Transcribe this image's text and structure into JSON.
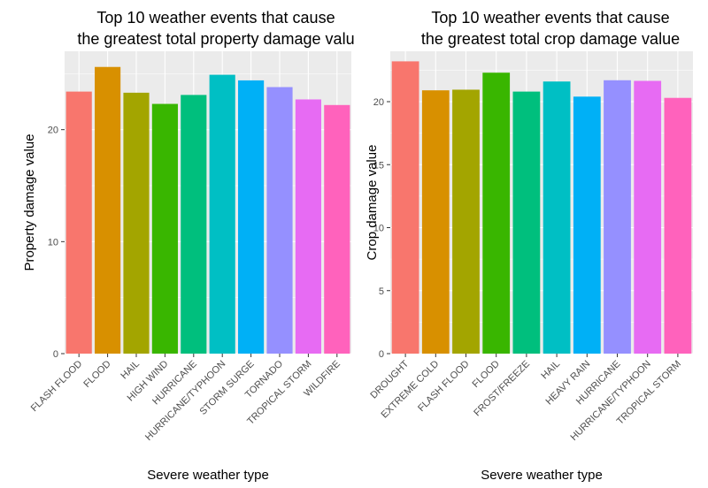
{
  "chart_data": [
    {
      "type": "bar",
      "title_lines": [
        "Top 10 weather events that cause",
        "the greatest total property damage valu"
      ],
      "xlabel": "Severe weather type",
      "ylabel": "Property damage value",
      "ylim": [
        0,
        27
      ],
      "yticks": [
        0,
        10,
        20
      ],
      "categories": [
        "FLASH FLOOD",
        "FLOOD",
        "HAIL",
        "HIGH WIND",
        "HURRICANE",
        "HURRICANE/TYPHOON",
        "STORM SURGE",
        "TORNADO",
        "TROPICAL STORM",
        "WILDFIRE"
      ],
      "values": [
        23.4,
        25.6,
        23.3,
        22.3,
        23.1,
        24.9,
        24.4,
        23.8,
        22.7,
        22.2
      ],
      "colors": [
        "#F8766D",
        "#D89000",
        "#A3A500",
        "#39B600",
        "#00BF7D",
        "#00BFC4",
        "#00B0F6",
        "#9590FF",
        "#E76BF3",
        "#FF62BC"
      ],
      "grid": true,
      "legend": "none"
    },
    {
      "type": "bar",
      "title_lines": [
        "Top 10 weather events that cause",
        "the greatest total crop damage value"
      ],
      "xlabel": "Severe weather type",
      "ylabel": "Crop damage value",
      "ylim": [
        0,
        24
      ],
      "yticks": [
        0,
        5,
        10,
        15,
        20
      ],
      "categories": [
        "DROUGHT",
        "EXTREME COLD",
        "FLASH FLOOD",
        "FLOOD",
        "FROST/FREEZE",
        "HAIL",
        "HEAVY RAIN",
        "HURRICANE",
        "HURRICANE/TYPHOON",
        "TROPICAL STORM"
      ],
      "values": [
        23.2,
        20.9,
        20.95,
        22.3,
        20.8,
        21.6,
        20.4,
        21.7,
        21.65,
        20.3
      ],
      "colors": [
        "#F8766D",
        "#D89000",
        "#A3A500",
        "#39B600",
        "#00BF7D",
        "#00BFC4",
        "#00B0F6",
        "#9590FF",
        "#E76BF3",
        "#FF62BC"
      ],
      "grid": true,
      "legend": "none"
    }
  ]
}
